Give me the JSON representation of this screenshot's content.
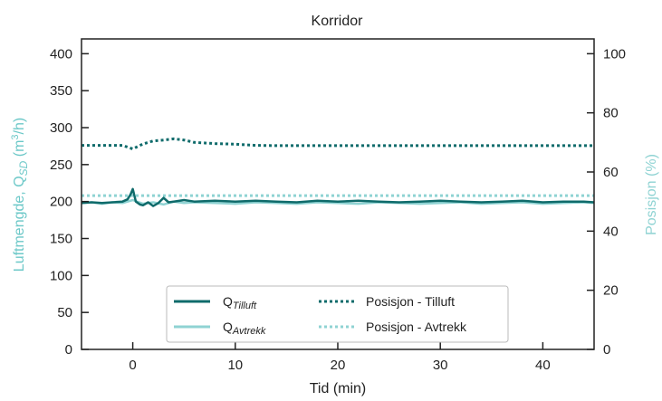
{
  "chart_data": {
    "type": "line",
    "title": "Korridor",
    "xlabel": "Tid (min)",
    "ylabel": {
      "prefix": "Luftmengde, Q",
      "sub": "SD",
      "unit_pre": " (m",
      "sup": "3",
      "unit_post": "/h)"
    },
    "y2label": "Posisjon (%)",
    "xlim": [
      -5,
      45
    ],
    "ylim": [
      0,
      420
    ],
    "y2lim": [
      0,
      105
    ],
    "xticks": [
      0,
      10,
      20,
      30,
      40
    ],
    "yticks": [
      0,
      50,
      100,
      150,
      200,
      250,
      300,
      350,
      400
    ],
    "y2ticks": [
      0,
      20,
      40,
      60,
      80,
      100
    ],
    "grid": false,
    "legend_position": "lower-center",
    "colors": {
      "tilluft": "#0f6b6b",
      "avtrekk": "#8fd3d3",
      "ylabel": "#6cc8c8",
      "y2label": "#8fd3d3"
    },
    "series": [
      {
        "name": "Q",
        "name_sub": "Tilluft",
        "axis": "left",
        "style": "solid",
        "color": "#0f6b6b",
        "x": [
          -5,
          -4,
          -3,
          -2,
          -1,
          -0.5,
          -0.2,
          0,
          0.3,
          0.7,
          1,
          1.5,
          2,
          2.5,
          3,
          3.5,
          4,
          5,
          6,
          8,
          10,
          12,
          14,
          16,
          18,
          20,
          22,
          24,
          26,
          28,
          30,
          32,
          34,
          36,
          38,
          40,
          42,
          44,
          45
        ],
        "y": [
          198,
          199,
          198,
          199,
          200,
          203,
          210,
          217,
          200,
          196,
          195,
          199,
          194,
          198,
          205,
          199,
          200,
          202,
          200,
          201,
          200,
          201,
          200,
          199,
          201,
          200,
          201,
          200,
          199,
          200,
          201,
          200,
          199,
          200,
          201,
          199,
          200,
          200,
          199
        ]
      },
      {
        "name": "Q",
        "name_sub": "Avtrekk",
        "axis": "left",
        "style": "solid",
        "color": "#8fd3d3",
        "x": [
          -5,
          -4,
          -3,
          -2,
          -1,
          0,
          1,
          2,
          3,
          4,
          5,
          6,
          8,
          10,
          12,
          14,
          16,
          18,
          20,
          22,
          24,
          26,
          28,
          30,
          32,
          34,
          36,
          38,
          40,
          42,
          44,
          45
        ],
        "y": [
          198,
          199,
          197,
          199,
          198,
          202,
          197,
          199,
          196,
          200,
          198,
          199,
          198,
          197,
          199,
          198,
          197,
          199,
          198,
          197,
          199,
          198,
          197,
          198,
          199,
          197,
          198,
          199,
          197,
          198,
          199,
          198
        ]
      },
      {
        "name": "Posisjon - Tilluft",
        "axis": "right",
        "style": "dotted",
        "color": "#0f6b6b",
        "x": [
          -5,
          -1,
          0,
          1,
          2,
          3,
          4,
          5,
          6,
          8,
          10,
          12,
          14,
          20,
          30,
          40,
          45
        ],
        "y": [
          69,
          69,
          67.8,
          69.5,
          70.5,
          70.8,
          71.2,
          70.8,
          70.0,
          69.6,
          69.4,
          69.0,
          68.9,
          68.9,
          68.9,
          68.9,
          68.9
        ]
      },
      {
        "name": "Posisjon - Avtrekk",
        "axis": "right",
        "style": "dotted",
        "color": "#8fd3d3",
        "x": [
          -5,
          45
        ],
        "y": [
          52,
          52
        ]
      }
    ]
  }
}
